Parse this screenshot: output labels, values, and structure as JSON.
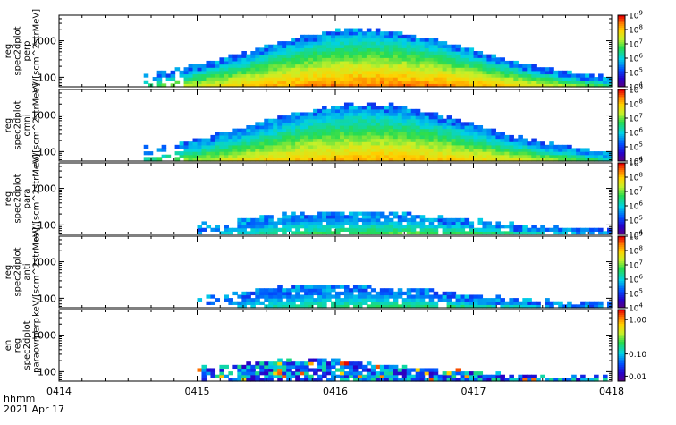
{
  "footer": {
    "time_format": "hhmm",
    "date": "2021 Apr 17"
  },
  "chart_data": [
    {
      "type": "heatmap",
      "panel_id": "perp",
      "ylabel_lines": [
        "reg",
        "spec2dplot",
        "perp",
        "eV/(scm^2strMeV)"
      ],
      "ylabel_display": [
        "reg",
        "spec2dplot",
        "perp",
        "eV/[scm^2strMeV]"
      ],
      "y_scale": "log",
      "ylim": [
        55,
        5000
      ],
      "y_ticks": [
        100,
        1000
      ],
      "y_tick_labels": [
        "100",
        "1000"
      ],
      "colorbar": {
        "scale": "log",
        "range": [
          10000,
          1000000000
        ],
        "tick_labels": [
          "10^4",
          "10^5",
          "10^6",
          "10^7",
          "10^8",
          "10^9"
        ]
      },
      "shape": "broad",
      "start": 0.6,
      "end": 4.0,
      "peak_time": 2.2,
      "edge_low": 0.08,
      "edge_high": 0.78,
      "sparse_until": 0.9,
      "intensity": 0.92
    },
    {
      "type": "heatmap",
      "panel_id": "omni",
      "ylabel_lines": [
        "reg",
        "spec2dplot",
        "omni",
        "eV/(scm^2strMeV)"
      ],
      "ylabel_display": [
        "reg",
        "spec2dplot",
        "omni",
        "eV/[scm^2strMeV]"
      ],
      "y_scale": "log",
      "ylim": [
        55,
        5000
      ],
      "y_ticks": [
        100,
        1000
      ],
      "y_tick_labels": [
        "100",
        "1000"
      ],
      "colorbar": {
        "scale": "log",
        "range": [
          10000,
          1000000000
        ],
        "tick_labels": [
          "10^4",
          "10^5",
          "10^6",
          "10^7",
          "10^8",
          "10^9"
        ]
      },
      "shape": "broad",
      "start": 0.6,
      "end": 4.0,
      "peak_time": 2.2,
      "edge_low": 0.08,
      "edge_high": 0.78,
      "sparse_until": 0.9,
      "intensity": 0.85
    },
    {
      "type": "heatmap",
      "panel_id": "para",
      "ylabel_lines": [
        "reg",
        "spec2dplot",
        "para",
        "keV/(scm^2strMeV)"
      ],
      "ylabel_display": [
        "reg",
        "spec2dplot",
        "para",
        "keV/[scm^2strMeV]"
      ],
      "y_scale": "log",
      "ylim": [
        55,
        5000
      ],
      "y_ticks": [
        100,
        1000
      ],
      "y_tick_labels": [
        "100",
        "1000"
      ],
      "colorbar": {
        "scale": "log",
        "range": [
          10000,
          1000000000
        ],
        "tick_labels": [
          "10^4",
          "10^5",
          "10^6",
          "10^7",
          "10^8",
          "10^9"
        ]
      },
      "shape": "narrow",
      "start": 1.0,
      "end": 4.0,
      "peak_time": 2.1,
      "edge_low": 0.05,
      "edge_high": 0.3,
      "sparse_until": 1.3,
      "intensity": 0.6
    },
    {
      "type": "heatmap",
      "panel_id": "anti",
      "ylabel_lines": [
        "reg",
        "spec2dplot",
        "anti",
        "keV/(scm^2strMeV)"
      ],
      "ylabel_display": [
        "reg",
        "spec2dplot",
        "anti",
        "keV/[scm^2strMeV]"
      ],
      "y_scale": "log",
      "ylim": [
        55,
        5000
      ],
      "y_ticks": [
        100,
        1000
      ],
      "y_tick_labels": [
        "100",
        "1000"
      ],
      "colorbar": {
        "scale": "log",
        "range": [
          10000,
          1000000000
        ],
        "tick_labels": [
          "10^4",
          "10^5",
          "10^6",
          "10^7",
          "10^8",
          "10^9"
        ]
      },
      "shape": "narrow",
      "start": 1.0,
      "end": 4.0,
      "peak_time": 2.0,
      "edge_low": 0.04,
      "edge_high": 0.3,
      "sparse_until": 1.3,
      "intensity": 0.55
    },
    {
      "type": "heatmap",
      "panel_id": "paraovrperp",
      "ylabel_lines": [
        "en",
        "reg",
        "spec2dplot",
        "paraovrperp"
      ],
      "ylabel_display": [
        "en",
        "reg",
        "spec2dplot",
        "paraovrperp"
      ],
      "y_scale": "log",
      "ylim": [
        55,
        5000
      ],
      "y_ticks": [
        100,
        1000
      ],
      "y_tick_labels": [
        "100",
        "1000"
      ],
      "colorbar": {
        "scale": "log",
        "range": [
          0.01,
          1.0
        ],
        "tick_labels": [
          "1.00",
          "0.10",
          "0.01"
        ]
      },
      "shape": "ratio",
      "start": 1.0,
      "end": 4.0,
      "peak_time": 1.8,
      "edge_low": 0.03,
      "edge_high": 0.28,
      "sparse_until": 1.3,
      "intensity": 0.4
    }
  ],
  "x_axis": {
    "tick_labels": [
      "0414",
      "0415",
      "0416",
      "0417",
      "0418"
    ],
    "range_hours": [
      0,
      4
    ]
  }
}
